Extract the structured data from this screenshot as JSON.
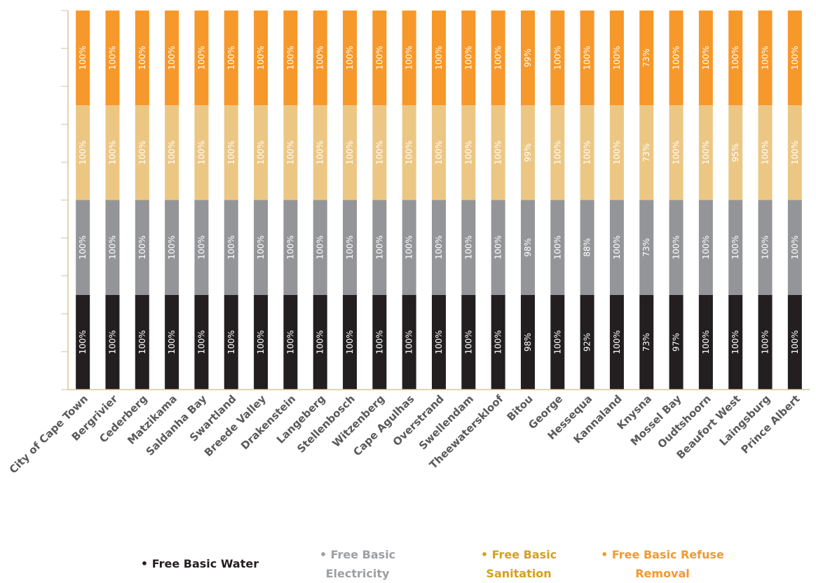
{
  "chart_data": {
    "type": "bar",
    "stacked": true,
    "categories": [
      "City of Cape Town",
      "Bergrivier",
      "Cederberg",
      "Matzikama",
      "Saldanha Bay",
      "Swartland",
      "Breede Valley",
      "Drakenstein",
      "Langeberg",
      "Stellenbosch",
      "Witzenberg",
      "Cape Agulhas",
      "Overstrand",
      "Swellendam",
      "Theewaterskloof",
      "Bitou",
      "George",
      "Hessequa",
      "Kannaland",
      "Knysna",
      "Mossel Bay",
      "Oudtshoorn",
      "Beaufort West",
      "Laingsburg",
      "Prince Albert"
    ],
    "series": [
      {
        "name": "• Free Basic Water",
        "color": "#231f20",
        "label_color": "#ffffff",
        "values": [
          100,
          100,
          100,
          100,
          100,
          100,
          100,
          100,
          100,
          100,
          100,
          100,
          100,
          100,
          100,
          98,
          100,
          92,
          100,
          73,
          97,
          100,
          100,
          100,
          100
        ]
      },
      {
        "name": "• Free Basic Electricity",
        "color": "#939598",
        "label_color": "#ffffff",
        "values": [
          100,
          100,
          100,
          100,
          100,
          100,
          100,
          100,
          100,
          100,
          100,
          100,
          100,
          100,
          100,
          98,
          100,
          88,
          100,
          73,
          100,
          100,
          100,
          100,
          100
        ]
      },
      {
        "name": "• Free Basic Sanitation",
        "color": "#ecc784",
        "label_color": "#ffffff",
        "values": [
          100,
          100,
          100,
          100,
          100,
          100,
          100,
          100,
          100,
          100,
          100,
          100,
          100,
          100,
          100,
          99,
          100,
          100,
          100,
          73,
          100,
          100,
          95,
          100,
          100
        ]
      },
      {
        "name": "• Free Basic Refuse Removal",
        "color": "#f7982a",
        "label_color": "#ffffff",
        "values": [
          100,
          100,
          100,
          100,
          100,
          100,
          100,
          100,
          100,
          100,
          100,
          100,
          100,
          100,
          100,
          99,
          100,
          100,
          100,
          73,
          100,
          100,
          100,
          100,
          100
        ]
      }
    ],
    "value_suffix": "%",
    "ylim": [
      0,
      400
    ],
    "legend_colors": [
      "#231f20",
      "#9d9fa2",
      "#d4a216",
      "#f7982a"
    ],
    "legend_position": "bottom"
  }
}
